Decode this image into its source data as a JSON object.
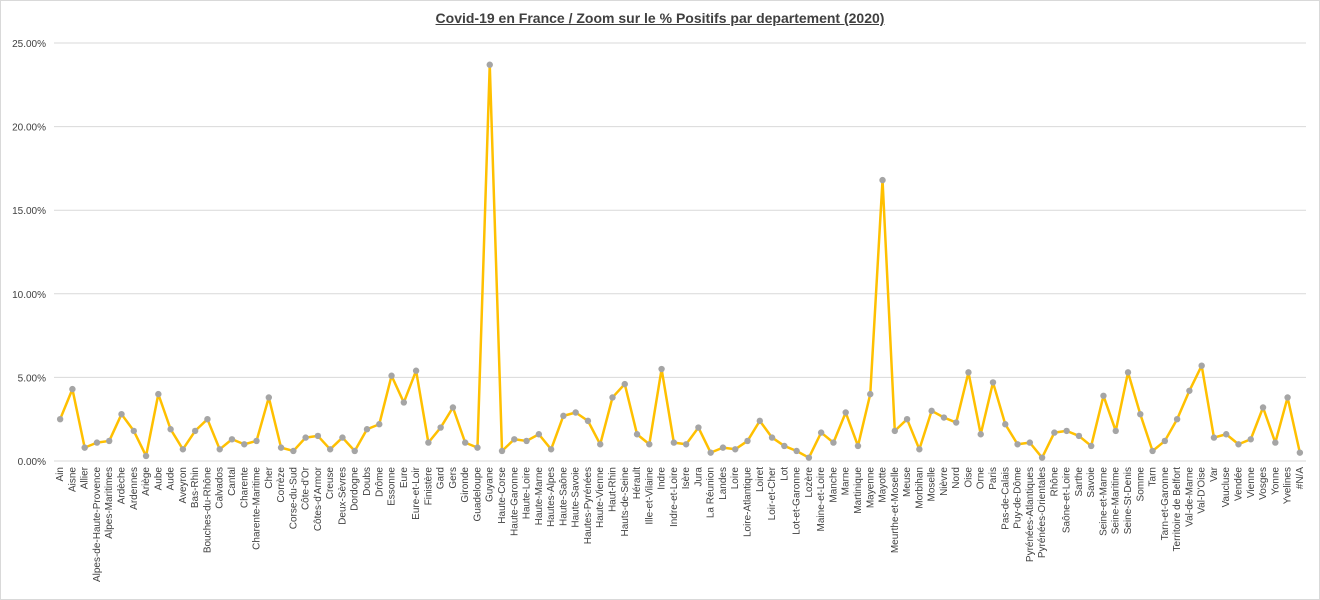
{
  "chart_data": {
    "type": "line",
    "title": "Covid-19 en France / Zoom  sur le % Positifs par departement (2020)",
    "xlabel": "",
    "ylabel": "",
    "ylim": [
      0,
      25
    ],
    "yticks": [
      "0.00%",
      "5.00%",
      "10.00%",
      "15.00%",
      "20.00%",
      "25.00%"
    ],
    "grid": true,
    "legend": "none",
    "line_color": "#FFC000",
    "marker_color": "#A5A5A5",
    "categories": [
      "Ain",
      "Aisne",
      "Allier",
      "Alpes-de-Haute-Provence",
      "Alpes-Maritimes",
      "Ardèche",
      "Ardennes",
      "Ariège",
      "Aube",
      "Aude",
      "Aveyron",
      "Bas-Rhin",
      "Bouches-du-Rhône",
      "Calvados",
      "Cantal",
      "Charente",
      "Charente-Maritime",
      "Cher",
      "Corrèze",
      "Corse-du-Sud",
      "Côte-d'Or",
      "Côtes-d'Armor",
      "Creuse",
      "Deux-Sèvres",
      "Dordogne",
      "Doubs",
      "Drôme",
      "Essonne",
      "Eure",
      "Eure-et-Loir",
      "Finistère",
      "Gard",
      "Gers",
      "Gironde",
      "Guadeloupe",
      "Guyane",
      "Haute-Corse",
      "Haute-Garonne",
      "Haute-Loire",
      "Haute-Marne",
      "Hautes-Alpes",
      "Haute-Saône",
      "Haute-Savoie",
      "Hautes-Pyrénées",
      "Haute-Vienne",
      "Haut-Rhin",
      "Hauts-de-Seine",
      "Hérault",
      "Ille-et-Vilaine",
      "Indre",
      "Indre-et-Loire",
      "Isère",
      "Jura",
      "La Réunion",
      "Landes",
      "Loire",
      "Loire-Atlantique",
      "Loiret",
      "Loir-et-Cher",
      "Lot",
      "Lot-et-Garonne",
      "Lozère",
      "Maine-et-Loire",
      "Manche",
      "Marne",
      "Martinique",
      "Mayenne",
      "Mayotte",
      "Meurthe-et-Moselle",
      "Meuse",
      "Morbihan",
      "Moselle",
      "Nièvre",
      "Nord",
      "Oise",
      "Orne",
      "Paris",
      "Pas-de-Calais",
      "Puy-de-Dôme",
      "Pyrénées-Atlantiques",
      "Pyrénées-Orientales",
      "Rhône",
      "Saône-et-Loire",
      "Sarthe",
      "Savoie",
      "Seine-et-Marne",
      "Seine-Maritime",
      "Seine-St-Denis",
      "Somme",
      "Tarn",
      "Tarn-et-Garonne",
      "Territoire de Belfort",
      "Val-de-Marne",
      "Val-D'Oise",
      "Var",
      "Vaucluse",
      "Vendée",
      "Vienne",
      "Vosges",
      "Yonne",
      "Yvelines",
      "#N/A"
    ],
    "values": [
      2.5,
      4.3,
      0.8,
      1.1,
      1.2,
      2.8,
      1.8,
      0.3,
      4.0,
      1.9,
      0.7,
      1.8,
      2.5,
      0.7,
      1.3,
      1.0,
      1.2,
      3.8,
      0.8,
      0.6,
      1.4,
      1.5,
      0.7,
      1.4,
      0.6,
      1.9,
      2.2,
      5.1,
      3.5,
      5.4,
      1.1,
      2.0,
      3.2,
      1.1,
      0.8,
      23.7,
      0.6,
      1.3,
      1.2,
      1.6,
      0.7,
      2.7,
      2.9,
      2.4,
      1.0,
      3.8,
      4.6,
      1.6,
      1.0,
      5.5,
      1.1,
      1.0,
      2.0,
      0.5,
      0.8,
      0.7,
      1.2,
      2.4,
      1.4,
      0.9,
      0.6,
      0.2,
      1.7,
      1.1,
      2.9,
      0.9,
      4.0,
      16.8,
      1.8,
      2.5,
      0.7,
      3.0,
      2.6,
      2.3,
      5.3,
      1.6,
      4.7,
      2.2,
      1.0,
      1.1,
      0.2,
      1.7,
      1.8,
      1.5,
      0.9,
      3.9,
      1.8,
      5.3,
      2.8,
      0.6,
      1.2,
      2.5,
      4.2,
      5.7,
      1.4,
      1.6,
      1.0,
      1.3,
      3.2,
      1.1,
      3.8,
      0.5
    ]
  }
}
